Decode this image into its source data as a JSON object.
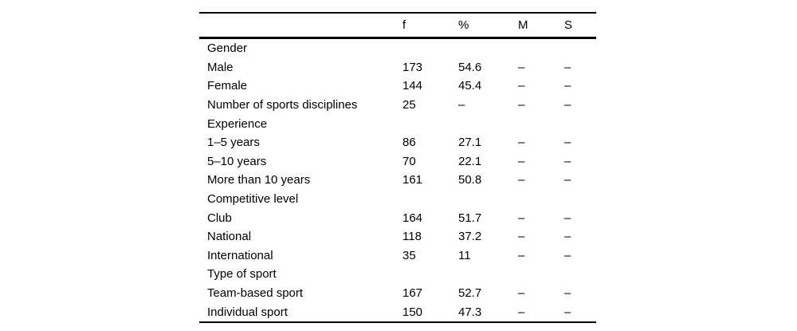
{
  "table": {
    "columns": [
      "",
      "f",
      "%",
      "M",
      "S"
    ],
    "rows": [
      {
        "label": "Gender",
        "f": "",
        "pct": "",
        "m": "",
        "s": "",
        "section": true
      },
      {
        "label": "Male",
        "f": "173",
        "pct": "54.6",
        "m": "–",
        "s": "–",
        "section": false
      },
      {
        "label": "Female",
        "f": "144",
        "pct": "45.4",
        "m": "–",
        "s": "–",
        "section": false
      },
      {
        "label": "Number of sports disciplines",
        "f": "25",
        "pct": "–",
        "m": "–",
        "s": "–",
        "section": false
      },
      {
        "label": "Experience",
        "f": "",
        "pct": "",
        "m": "",
        "s": "",
        "section": true
      },
      {
        "label": "1–5 years",
        "f": "86",
        "pct": "27.1",
        "m": "–",
        "s": "–",
        "section": false
      },
      {
        "label": "5–10 years",
        "f": "70",
        "pct": "22.1",
        "m": "–",
        "s": "–",
        "section": false
      },
      {
        "label": "More than 10 years",
        "f": "161",
        "pct": "50.8",
        "m": "–",
        "s": "–",
        "section": false
      },
      {
        "label": "Competitive level",
        "f": "",
        "pct": "",
        "m": "",
        "s": "",
        "section": true
      },
      {
        "label": "Club",
        "f": "164",
        "pct": "51.7",
        "m": "–",
        "s": "–",
        "section": false
      },
      {
        "label": "National",
        "f": "118",
        "pct": "37.2",
        "m": "–",
        "s": "–",
        "section": false
      },
      {
        "label": "International",
        "f": "35",
        "pct": "11",
        "m": "–",
        "s": "–",
        "section": false
      },
      {
        "label": "Type of sport",
        "f": "",
        "pct": "",
        "m": "",
        "s": "",
        "section": true
      },
      {
        "label": "Team-based sport",
        "f": "167",
        "pct": "52.7",
        "m": "–",
        "s": "–",
        "section": false
      },
      {
        "label": "Individual sport",
        "f": "150",
        "pct": "47.3",
        "m": "–",
        "s": "–",
        "section": false
      }
    ]
  },
  "colors": {
    "text": "#000000",
    "rule": "#000000",
    "background": "#ffffff"
  }
}
